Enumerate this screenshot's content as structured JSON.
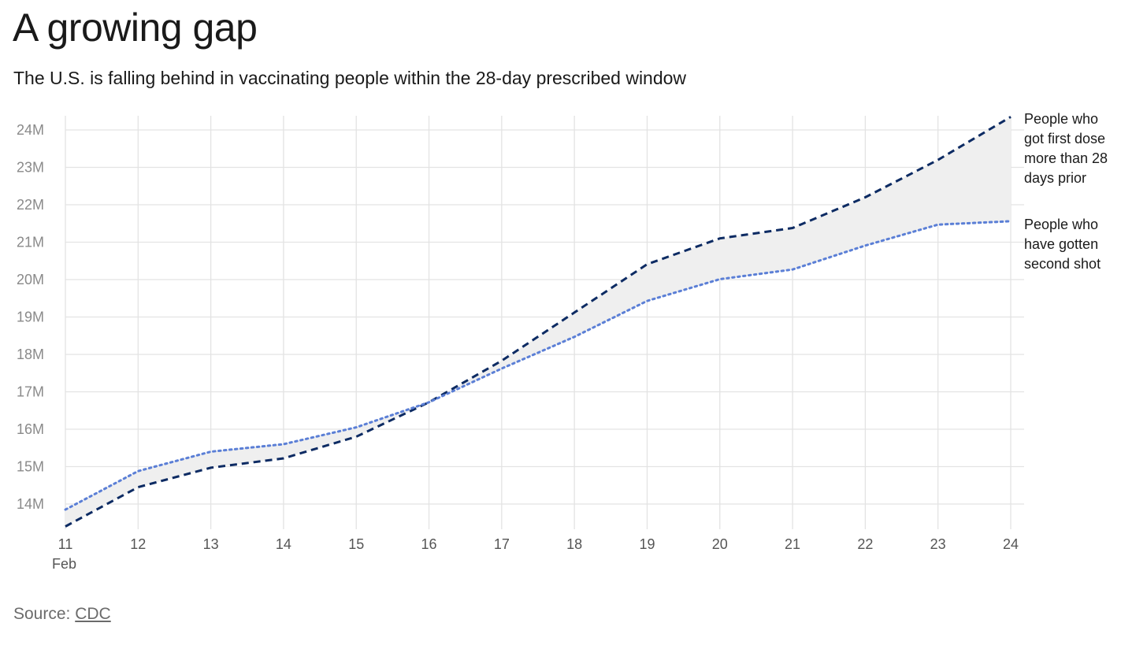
{
  "header": {
    "title": "A growing gap",
    "subtitle": "The U.S. is falling behind in vaccinating people within the 28-day prescribed window"
  },
  "source": {
    "prefix": "Source: ",
    "link_text": "CDC"
  },
  "chart_data": {
    "type": "line",
    "title": "A growing gap",
    "subtitle": "The U.S. is falling behind in vaccinating people within the 28-day prescribed window",
    "x": [
      11,
      12,
      13,
      14,
      15,
      16,
      17,
      18,
      19,
      20,
      21,
      22,
      23,
      24
    ],
    "x_tick_labels": [
      "11",
      "12",
      "13",
      "14",
      "15",
      "16",
      "17",
      "18",
      "19",
      "20",
      "21",
      "22",
      "23",
      "24"
    ],
    "x_sublabel": "Feb",
    "y_ticks": [
      14,
      15,
      16,
      17,
      18,
      19,
      20,
      21,
      22,
      23,
      24
    ],
    "y_tick_labels": [
      "14M",
      "15M",
      "16M",
      "17M",
      "18M",
      "19M",
      "20M",
      "21M",
      "22M",
      "23M",
      "24M"
    ],
    "y_unit": "M",
    "ylim": [
      13.4,
      24.4
    ],
    "grid": true,
    "area_between_series": true,
    "series": [
      {
        "name": "People who got first dose more than 28 days prior",
        "label_lines": [
          "People who",
          "got first dose",
          "more than 28",
          "days prior"
        ],
        "style": "dashed",
        "color": "#0d2b63",
        "values": [
          13.4,
          14.45,
          14.97,
          15.22,
          15.8,
          16.72,
          17.83,
          19.12,
          20.41,
          21.1,
          21.38,
          22.2,
          23.2,
          24.35
        ]
      },
      {
        "name": "People who have gotten second shot",
        "label_lines": [
          "People who",
          "have gotten",
          "second shot"
        ],
        "style": "dotted",
        "color": "#5b7fd6",
        "values": [
          13.85,
          14.88,
          15.4,
          15.6,
          16.05,
          16.72,
          17.62,
          18.47,
          19.43,
          20.01,
          20.27,
          20.91,
          21.47,
          21.56
        ]
      }
    ],
    "colors": {
      "grid": "#e3e3e3",
      "area": "#efefef"
    }
  }
}
